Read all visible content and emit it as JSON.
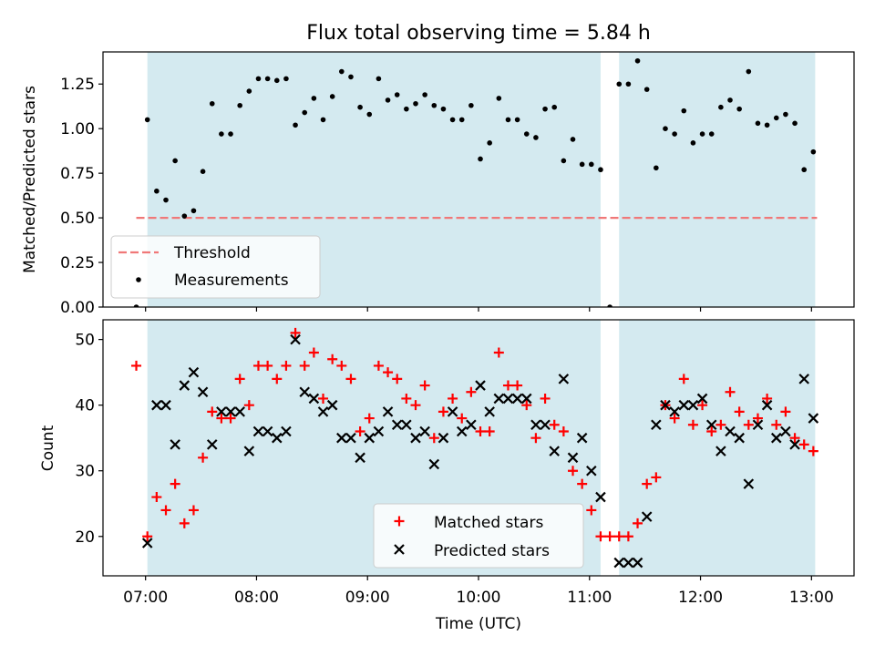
{
  "title": "Flux total observing time = 5.84 h",
  "chart_data": [
    {
      "type": "scatter",
      "ylabel": "Matched/Predicted stars",
      "xlabel": "",
      "ylim": [
        0.0,
        1.43
      ],
      "yticks": [
        "0.00",
        "0.25",
        "0.50",
        "0.75",
        "1.00",
        "1.25"
      ],
      "grid": false,
      "legend_placement": "lower-left",
      "threshold": {
        "name": "Threshold",
        "value": 0.5,
        "x_range": [
          "06:55",
          "13:03"
        ],
        "color": "#f07878"
      },
      "shaded_intervals": [
        [
          "07:01",
          "11:06"
        ],
        [
          "11:16",
          "13:02"
        ]
      ],
      "shade_color": "#d4eaf0",
      "series": [
        {
          "name": "Measurements",
          "color": "#000000",
          "x": [
            "06:55",
            "07:01",
            "07:06",
            "07:11",
            "07:16",
            "07:21",
            "07:26",
            "07:31",
            "07:36",
            "07:41",
            "07:46",
            "07:51",
            "07:56",
            "08:01",
            "08:06",
            "08:11",
            "08:16",
            "08:21",
            "08:26",
            "08:31",
            "08:36",
            "08:41",
            "08:46",
            "08:51",
            "08:56",
            "09:01",
            "09:06",
            "09:11",
            "09:16",
            "09:21",
            "09:26",
            "09:31",
            "09:36",
            "09:41",
            "09:46",
            "09:51",
            "09:56",
            "10:01",
            "10:06",
            "10:11",
            "10:16",
            "10:21",
            "10:26",
            "10:31",
            "10:36",
            "10:41",
            "10:46",
            "10:51",
            "10:56",
            "11:01",
            "11:06",
            "11:11",
            "11:16",
            "11:21",
            "11:26",
            "11:31",
            "11:36",
            "11:41",
            "11:46",
            "11:51",
            "11:56",
            "12:01",
            "12:06",
            "12:11",
            "12:16",
            "12:21",
            "12:26",
            "12:31",
            "12:36",
            "12:41",
            "12:46",
            "12:51",
            "12:56",
            "13:01"
          ],
          "y": [
            0.0,
            1.05,
            0.65,
            0.6,
            0.82,
            0.51,
            0.54,
            0.76,
            1.14,
            0.97,
            0.97,
            1.13,
            1.21,
            1.28,
            1.28,
            1.27,
            1.28,
            1.02,
            1.09,
            1.17,
            1.05,
            1.18,
            1.32,
            1.29,
            1.12,
            1.08,
            1.28,
            1.16,
            1.19,
            1.11,
            1.14,
            1.19,
            1.13,
            1.11,
            1.05,
            1.05,
            1.13,
            0.83,
            0.92,
            1.17,
            1.05,
            1.05,
            0.97,
            0.95,
            1.11,
            1.12,
            0.82,
            0.94,
            0.8,
            0.8,
            0.77,
            0.0,
            1.25,
            1.25,
            1.38,
            1.22,
            0.78,
            1.0,
            0.97,
            1.1,
            0.92,
            0.97,
            0.97,
            1.12,
            1.16,
            1.11,
            1.32,
            1.03,
            1.02,
            1.06,
            1.08,
            1.03,
            0.77,
            0.87
          ]
        }
      ]
    },
    {
      "type": "scatter",
      "ylabel": "Count",
      "xlabel": "Time (UTC)",
      "ylim": [
        14,
        53
      ],
      "yticks": [
        "20",
        "30",
        "40",
        "50"
      ],
      "xticks": [
        "07:00",
        "08:00",
        "09:00",
        "10:00",
        "11:00",
        "12:00",
        "13:00"
      ],
      "xlim": [
        "06:37",
        "13:23"
      ],
      "grid": false,
      "legend_placement": "lower-center",
      "series": [
        {
          "name": "Matched stars",
          "marker": "plus",
          "color": "#ff0000",
          "x": [
            "06:55",
            "07:01",
            "07:06",
            "07:11",
            "07:16",
            "07:21",
            "07:26",
            "07:31",
            "07:36",
            "07:41",
            "07:46",
            "07:51",
            "07:56",
            "08:01",
            "08:06",
            "08:11",
            "08:16",
            "08:21",
            "08:26",
            "08:31",
            "08:36",
            "08:41",
            "08:46",
            "08:51",
            "08:56",
            "09:01",
            "09:06",
            "09:11",
            "09:16",
            "09:21",
            "09:26",
            "09:31",
            "09:36",
            "09:41",
            "09:46",
            "09:51",
            "09:56",
            "10:01",
            "10:06",
            "10:11",
            "10:16",
            "10:21",
            "10:26",
            "10:31",
            "10:36",
            "10:41",
            "10:46",
            "10:51",
            "10:56",
            "11:01",
            "11:06",
            "11:11",
            "11:16",
            "11:21",
            "11:26",
            "11:31",
            "11:36",
            "11:41",
            "11:46",
            "11:51",
            "11:56",
            "12:01",
            "12:06",
            "12:11",
            "12:16",
            "12:21",
            "12:26",
            "12:31",
            "12:36",
            "12:41",
            "12:46",
            "12:51",
            "12:56",
            "13:01"
          ],
          "y": [
            46,
            20,
            26,
            24,
            28,
            22,
            24,
            32,
            39,
            38,
            38,
            44,
            40,
            46,
            46,
            44,
            46,
            51,
            46,
            48,
            41,
            47,
            46,
            44,
            36,
            38,
            46,
            45,
            44,
            41,
            40,
            43,
            35,
            39,
            41,
            38,
            42,
            36,
            36,
            48,
            43,
            43,
            40,
            35,
            41,
            37,
            36,
            30,
            28,
            24,
            20,
            20,
            20,
            20,
            22,
            28,
            29,
            40,
            38,
            44,
            37,
            40,
            36,
            37,
            42,
            39,
            37,
            38,
            41,
            37,
            39,
            35,
            34,
            33
          ]
        },
        {
          "name": "Predicted stars",
          "marker": "x",
          "color": "#000000",
          "x": [
            "07:01",
            "07:06",
            "07:11",
            "07:16",
            "07:21",
            "07:26",
            "07:31",
            "07:36",
            "07:41",
            "07:46",
            "07:51",
            "07:56",
            "08:01",
            "08:06",
            "08:11",
            "08:16",
            "08:21",
            "08:26",
            "08:31",
            "08:36",
            "08:41",
            "08:46",
            "08:51",
            "08:56",
            "09:01",
            "09:06",
            "09:11",
            "09:16",
            "09:21",
            "09:26",
            "09:31",
            "09:36",
            "09:41",
            "09:46",
            "09:51",
            "09:56",
            "10:01",
            "10:06",
            "10:11",
            "10:16",
            "10:21",
            "10:26",
            "10:31",
            "10:36",
            "10:41",
            "10:46",
            "10:51",
            "10:56",
            "11:01",
            "11:06",
            "11:16",
            "11:21",
            "11:26",
            "11:31",
            "11:36",
            "11:41",
            "11:46",
            "11:51",
            "11:56",
            "12:01",
            "12:06",
            "12:11",
            "12:16",
            "12:21",
            "12:26",
            "12:31",
            "12:36",
            "12:41",
            "12:46",
            "12:51",
            "12:56",
            "13:01"
          ],
          "y": [
            19,
            40,
            40,
            34,
            43,
            45,
            42,
            34,
            39,
            39,
            39,
            33,
            36,
            36,
            35,
            36,
            50,
            42,
            41,
            39,
            40,
            35,
            35,
            32,
            35,
            36,
            39,
            37,
            37,
            35,
            36,
            31,
            35,
            39,
            36,
            37,
            43,
            39,
            41,
            41,
            41,
            41,
            37,
            37,
            33,
            44,
            32,
            35,
            30,
            26,
            16,
            16,
            16,
            23,
            37,
            40,
            39,
            40,
            40,
            41,
            37,
            33,
            36,
            35,
            28,
            37,
            40,
            35,
            36,
            34,
            44,
            38
          ]
        }
      ]
    }
  ]
}
